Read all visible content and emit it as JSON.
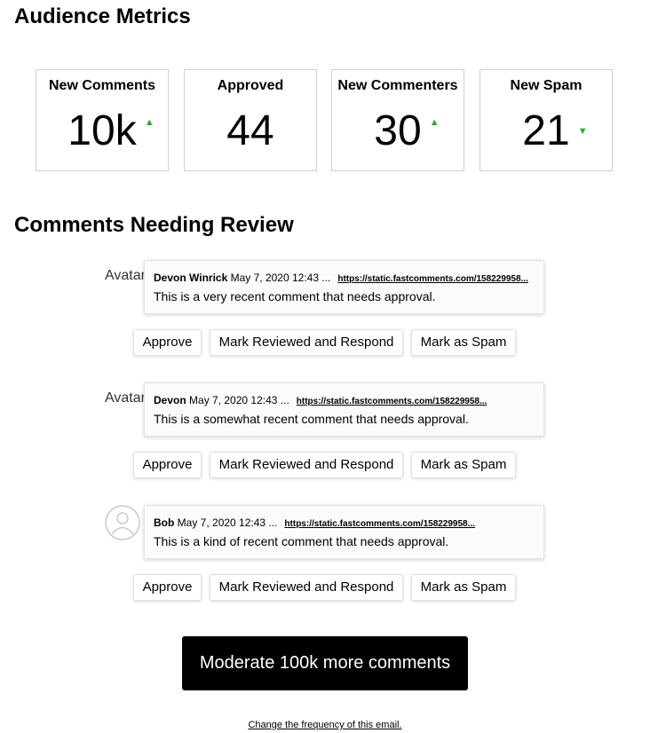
{
  "title": "Audience Metrics",
  "metrics": [
    {
      "label": "New Comments",
      "value": "10k",
      "trend": "up"
    },
    {
      "label": "Approved",
      "value": "44",
      "trend": ""
    },
    {
      "label": "New Commenters",
      "value": "30",
      "trend": "up"
    },
    {
      "label": "New Spam",
      "value": "21",
      "trend": "down"
    }
  ],
  "trend_color": "#1db31d",
  "review_title": "Comments Needing Review",
  "comments": [
    {
      "avatar_alt": "Avatar",
      "author": "Devon Winrick",
      "date": "May 7, 2020 12:43 ...",
      "url": "https://static.fastcomments.com/158229958...",
      "text": "This is a very recent comment that needs approval."
    },
    {
      "avatar_alt": "Avatar",
      "author": "Devon",
      "date": "May 7, 2020 12:43 ...",
      "url": "https://static.fastcomments.com/158229958...",
      "text": "This is a somewhat recent comment that needs approval."
    },
    {
      "avatar_alt": "",
      "author": "Bob",
      "date": "May 7, 2020 12:43 ...",
      "url": "https://static.fastcomments.com/158229958...",
      "text": "This is a kind of recent comment that needs approval."
    }
  ],
  "actions": {
    "approve": "Approve",
    "respond": "Mark Reviewed and Respond",
    "spam": "Mark as Spam"
  },
  "moderate_label": "Moderate 100k more comments",
  "footer_link": "Change the frequency of this email."
}
